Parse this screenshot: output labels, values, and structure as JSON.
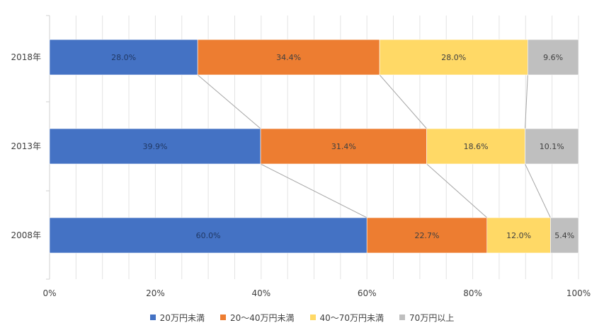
{
  "chart_data": {
    "type": "bar",
    "orientation": "horizontal",
    "stacked": "percent",
    "categories": [
      "2018年",
      "2013年",
      "2008年"
    ],
    "series": [
      {
        "name": "20万円未満",
        "color": "#4472C4",
        "values": [
          28.0,
          39.9,
          60.0
        ],
        "labels": [
          "28.0%",
          "39.9%",
          "60.0%"
        ]
      },
      {
        "name": "20〜40万円未満",
        "color": "#ED7D31",
        "values": [
          34.4,
          31.4,
          22.7
        ],
        "labels": [
          "34.4%",
          "31.4%",
          "22.7%"
        ]
      },
      {
        "name": "40〜70万円未満",
        "color": "#FFD966",
        "values": [
          28.0,
          18.6,
          12.0
        ],
        "labels": [
          "28.0%",
          "18.6%",
          "12.0%"
        ]
      },
      {
        "name": "70万円以上",
        "color": "#BFBFBF",
        "values": [
          9.6,
          10.1,
          5.4
        ],
        "labels": [
          "9.6%",
          "10.1%",
          "5.4%"
        ]
      }
    ],
    "xlim": [
      0,
      100
    ],
    "x_ticks": [
      "0%",
      "20%",
      "40%",
      "60%",
      "80%",
      "100%"
    ],
    "grid": true,
    "series_lines": true,
    "legend_position": "bottom"
  }
}
